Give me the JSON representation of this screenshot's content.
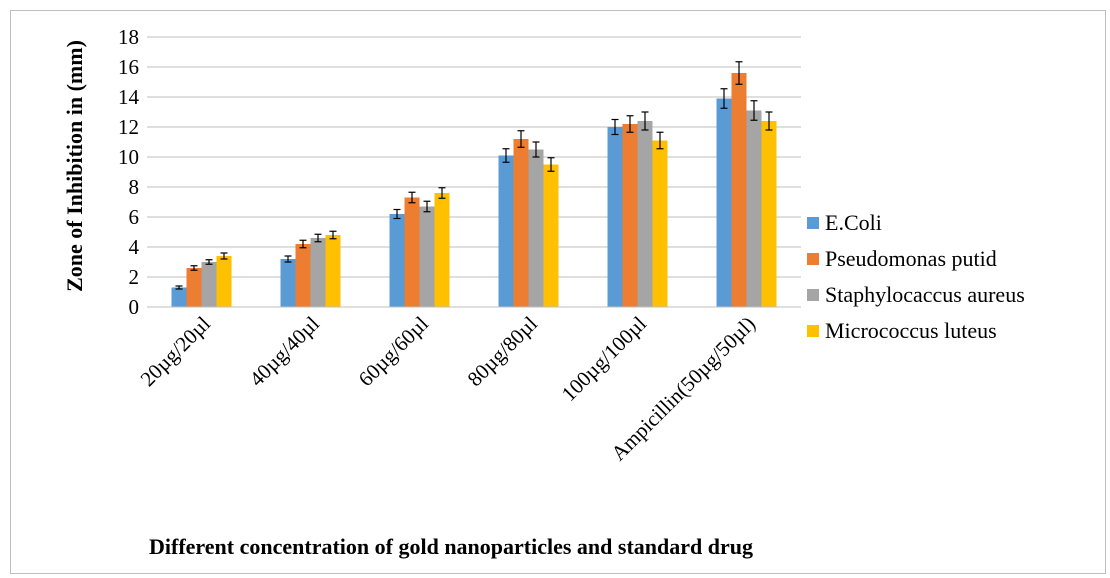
{
  "chart_data": {
    "type": "bar",
    "title": "",
    "xlabel": "Different concentration of gold nanoparticles and standard drug",
    "ylabel": "Zone of Inhibition in (mm)",
    "categories": [
      "20µg/20µl",
      "40µg/40µl",
      "60µg/60µl",
      "80µg/80µl",
      "100µg/100µl",
      "Ampicillin(50µg/50µl)"
    ],
    "ylim": [
      0,
      18
    ],
    "yticks": [
      0,
      2,
      4,
      6,
      8,
      10,
      12,
      14,
      16,
      18
    ],
    "grid": true,
    "legend_position": "right",
    "series": [
      {
        "name": "E.Coli",
        "color": "#5b9bd5",
        "values": [
          1.3,
          3.2,
          6.2,
          10.1,
          12.0,
          13.9
        ],
        "errors": [
          0.1,
          0.2,
          0.3,
          0.45,
          0.5,
          0.65
        ]
      },
      {
        "name": "Pseudomonas putid",
        "color": "#ed7d31",
        "values": [
          2.6,
          4.2,
          7.3,
          11.2,
          12.2,
          15.6
        ],
        "errors": [
          0.15,
          0.25,
          0.35,
          0.55,
          0.55,
          0.75
        ]
      },
      {
        "name": "Staphylocaccus aureus",
        "color": "#a5a5a5",
        "values": [
          3.0,
          4.6,
          6.7,
          10.5,
          12.4,
          13.1
        ],
        "errors": [
          0.15,
          0.25,
          0.35,
          0.5,
          0.6,
          0.65
        ]
      },
      {
        "name": "Micrococcus luteus",
        "color": "#ffc000",
        "values": [
          3.4,
          4.8,
          7.6,
          9.5,
          11.1,
          12.4
        ],
        "errors": [
          0.2,
          0.25,
          0.35,
          0.45,
          0.55,
          0.6
        ]
      }
    ]
  }
}
